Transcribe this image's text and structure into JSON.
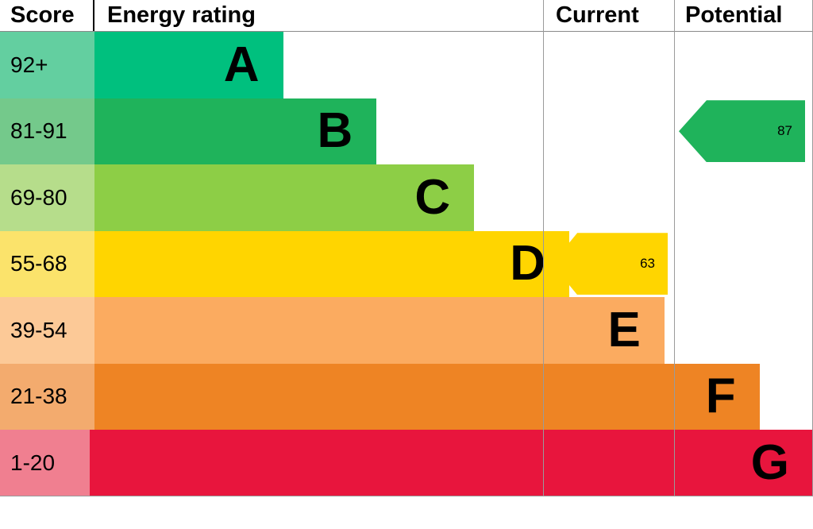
{
  "header": {
    "score": "Score",
    "rating": "Energy rating",
    "current": "Current",
    "potential": "Potential"
  },
  "chart_data": {
    "type": "bar",
    "title": "Energy rating (EPC bands)",
    "categories": [
      "A",
      "B",
      "C",
      "D",
      "E",
      "F",
      "G"
    ],
    "bands": [
      {
        "range": "92+",
        "letter": "A",
        "color": "#00c07e",
        "score_cell_color": "#63cfa0",
        "width_pct": 23.2
      },
      {
        "range": "81-91",
        "letter": "B",
        "color": "#1fb35b",
        "score_cell_color": "#74c98b",
        "width_pct": 34.7
      },
      {
        "range": "69-80",
        "letter": "C",
        "color": "#8dce46",
        "score_cell_color": "#b6dd8b",
        "width_pct": 46.7
      },
      {
        "range": "55-68",
        "letter": "D",
        "color": "#ffd500",
        "score_cell_color": "#fbe36b",
        "width_pct": 58.4
      },
      {
        "range": "39-54",
        "letter": "E",
        "color": "#fbab60",
        "score_cell_color": "#fcc997",
        "width_pct": 70.1
      },
      {
        "range": "21-38",
        "letter": "F",
        "color": "#ee8424",
        "score_cell_color": "#f3ab6e",
        "width_pct": 81.8
      },
      {
        "range": "1-20",
        "letter": "G",
        "color": "#e8153d",
        "score_cell_color": "#f07f90",
        "width_pct": 93.8
      }
    ],
    "current": {
      "value": 63,
      "band": "D",
      "band_index": 3,
      "color": "#ffd500"
    },
    "potential": {
      "value": 87,
      "band": "B",
      "band_index": 1,
      "color": "#1fb35b"
    }
  }
}
